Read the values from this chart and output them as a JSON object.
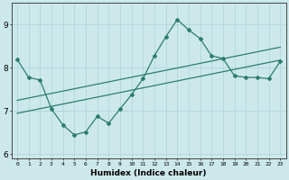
{
  "xlabel": "Humidex (Indice chaleur)",
  "x_values": [
    0,
    1,
    2,
    3,
    4,
    5,
    6,
    7,
    8,
    9,
    10,
    11,
    12,
    13,
    14,
    15,
    16,
    17,
    18,
    19,
    20,
    21,
    22,
    23
  ],
  "line1_y": [
    8.2,
    7.78,
    7.72,
    7.05,
    6.68,
    6.45,
    6.52,
    6.88,
    6.72,
    7.05,
    7.38,
    7.75,
    8.28,
    8.72,
    9.12,
    8.88,
    8.68,
    8.28,
    8.22,
    7.82,
    7.78,
    7.78,
    7.75,
    8.15
  ],
  "trend1_x": [
    0,
    23
  ],
  "trend1_y": [
    6.95,
    8.18
  ],
  "trend2_x": [
    0,
    23
  ],
  "trend2_y": [
    7.25,
    8.48
  ],
  "color": "#2d7d6e",
  "bg_color": "#cce8eb",
  "grid_color": "#b0d8dc",
  "ylim": [
    5.9,
    9.5
  ],
  "yticks": [
    6,
    7,
    8,
    9
  ],
  "xlim": [
    -0.5,
    23.5
  ]
}
